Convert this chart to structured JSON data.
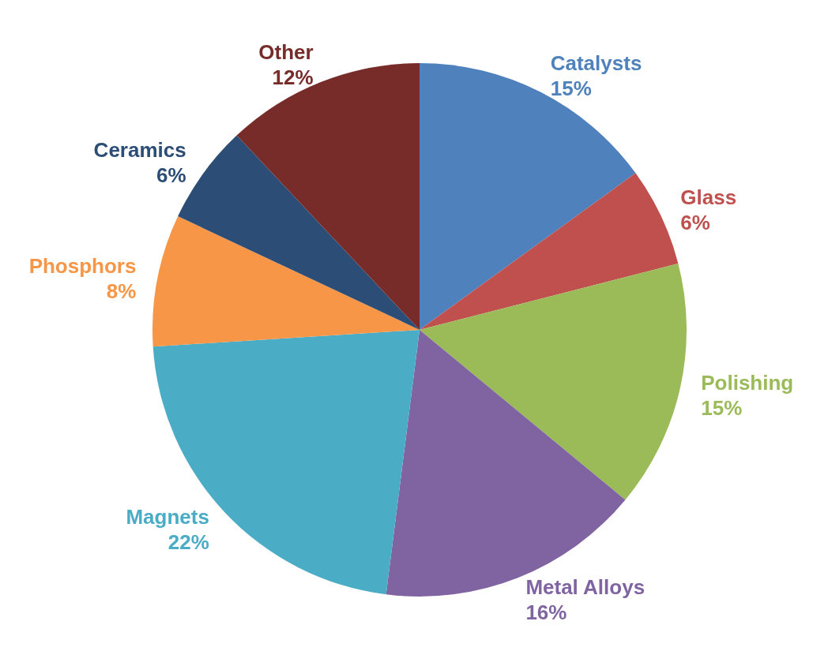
{
  "chart_data": {
    "type": "pie",
    "categories": [
      "Catalysts",
      "Glass",
      "Polishing",
      "Metal Alloys",
      "Magnets",
      "Phosphors",
      "Ceramics",
      "Other"
    ],
    "values": [
      15,
      6,
      15,
      16,
      22,
      8,
      6,
      12
    ],
    "colors": [
      "#4f81bd",
      "#c0504d",
      "#9bbb59",
      "#8064a2",
      "#4bacc6",
      "#f79646",
      "#2c4d75",
      "#772c2a"
    ],
    "value_labels": [
      "15%",
      "6%",
      "15%",
      "16%",
      "22%",
      "8%",
      "6%",
      "12%"
    ]
  }
}
